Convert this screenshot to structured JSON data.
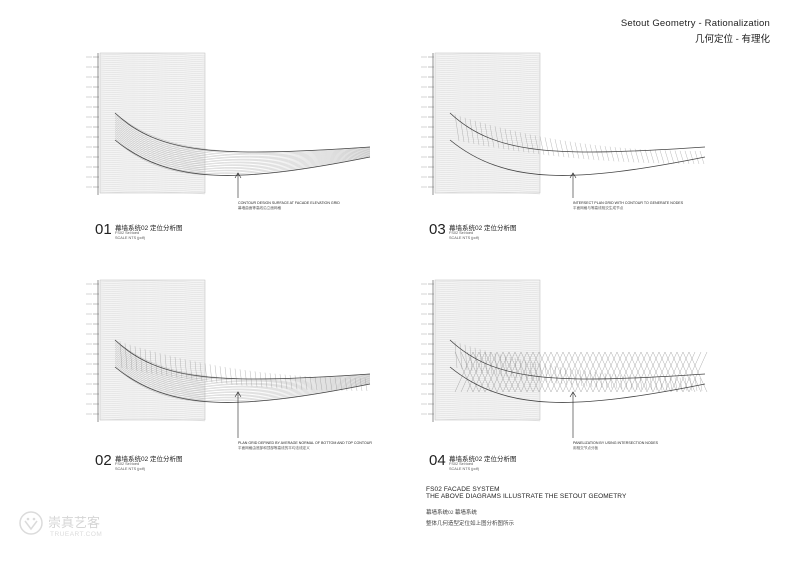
{
  "header": {
    "title": "Setout Geometry - Rationalization",
    "subtitle": "几何定位 - 有理化"
  },
  "panels": [
    {
      "number": "01",
      "title": "幕墙系统02  定位分析图",
      "sub": "FS02  Sel:toed",
      "scale": "SCALE      NTS (pdf)",
      "annotation": "CONTOUR DESIGN SURFACE AT FACADE ELEVATION GRID",
      "annotation_cn": "幕墙曲面等高线沿立面网格"
    },
    {
      "number": "03",
      "title": "幕墙系统02  定位分析图",
      "sub": "FS02  Sel:toed",
      "scale": "SCALE      NTS (pdf)",
      "annotation": "INTERSECT PLAN GRID WITH CONTOUR TO GENERATE NODES",
      "annotation_cn": "平面网格与等高线相交生成节点"
    },
    {
      "number": "02",
      "title": "幕墙系统02  定位分析图",
      "sub": "FS02  Sel:toed",
      "scale": "SCALE      NTS (pdf)",
      "annotation": "PLAN GRID DEFINED BY AVERAGE NORMAL OF BOTTOM AND TOP CONTOUR",
      "annotation_cn": "平面网格由底部和顶部等高线的平均法线定义"
    },
    {
      "number": "04",
      "title": "幕墙系统02  定位分析图",
      "sub": "FS02  Sel:toed",
      "scale": "SCALE      NTS (pdf)",
      "annotation": "PANELIZATION BY USING INTERSECTION NODES",
      "annotation_cn": "用相交节点分板"
    }
  ],
  "footer": {
    "line1": "FS02 FACADE SYSTEM",
    "line2": "THE ABOVE DIAGRAMS ILLUSTRATE THE SETOUT GEOMETRY",
    "line3": "幕墙系统02  幕墙系统",
    "line4": "整体几何造型定位如上图分析图所示"
  },
  "watermark": {
    "cn": "崇真艺客",
    "en": "TRUEART.COM"
  }
}
